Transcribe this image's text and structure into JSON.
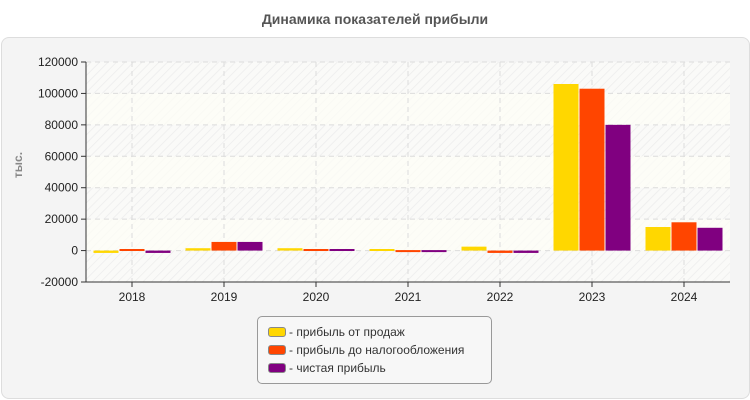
{
  "chart_data": {
    "type": "bar",
    "title": "Динамика показателей прибыли",
    "xlabel": "",
    "ylabel": "тыс.",
    "ylim": [
      -20000,
      120000
    ],
    "yticks": [
      "120000",
      "100000",
      "80000",
      "60000",
      "40000",
      "20000",
      "0",
      "-20000"
    ],
    "grid": true,
    "legend_position": "bottom",
    "categories": [
      "2018",
      "2019",
      "2020",
      "2021",
      "2022",
      "2023",
      "2024"
    ],
    "series": [
      {
        "name": "- прибыль от продаж",
        "color": "#FFD700",
        "values": [
          -1500,
          1500,
          1500,
          1000,
          2500,
          106000,
          15000
        ]
      },
      {
        "name": "- прибыль до налогообложения",
        "color": "#FF4500",
        "values": [
          1000,
          5500,
          1000,
          300,
          -1500,
          103000,
          18000
        ]
      },
      {
        "name": "- чистая прибыль",
        "color": "#800080",
        "values": [
          -1500,
          5500,
          1000,
          300,
          -1500,
          80000,
          14500
        ]
      }
    ]
  }
}
